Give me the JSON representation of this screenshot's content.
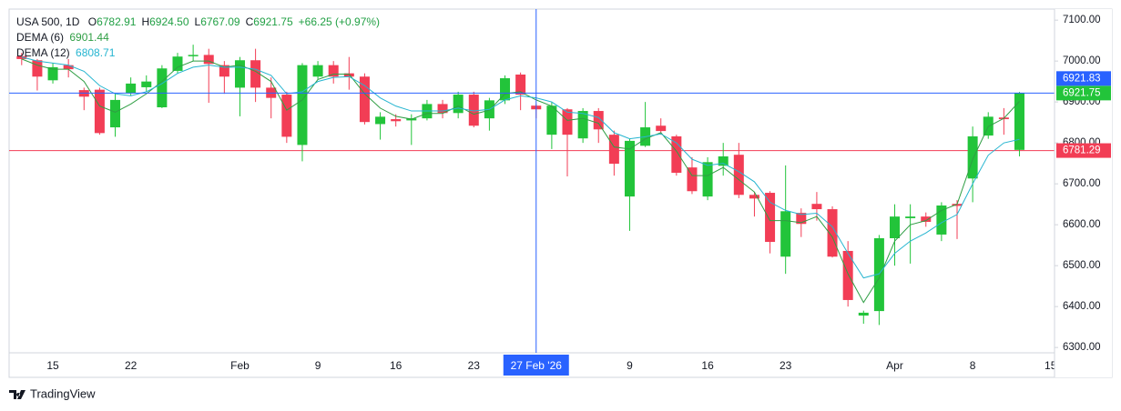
{
  "chart_data": {
    "type": "candlestick",
    "header": {
      "symbol": "USA 500, 1D",
      "ohlc": [
        {
          "key": "O",
          "value": "6782.91"
        },
        {
          "key": "H",
          "value": "6924.50"
        },
        {
          "key": "L",
          "value": "6767.09"
        },
        {
          "key": "C",
          "value": "6921.75"
        }
      ],
      "change": "+66.25 (+0.97%)"
    },
    "categories": [
      null,
      null,
      "15",
      null,
      null,
      null,
      null,
      "22",
      null,
      null,
      null,
      null,
      null,
      null,
      "Feb",
      null,
      null,
      null,
      null,
      "9",
      null,
      null,
      null,
      null,
      "16",
      null,
      null,
      null,
      null,
      "23",
      null,
      null,
      null,
      null,
      null,
      null,
      null,
      null,
      null,
      "9",
      null,
      null,
      null,
      null,
      "16",
      null,
      null,
      null,
      null,
      "23",
      null,
      null,
      null,
      null,
      null,
      null,
      "Apr",
      null,
      null,
      null,
      null,
      "8",
      null,
      null,
      null
    ],
    "extra_x_labels": [
      "15"
    ],
    "open": [
      7012,
      7002,
      6953,
      6990,
      6929,
      6930,
      6838,
      6922,
      6936,
      6887,
      6976,
      7012,
      7015,
      6990,
      6935,
      7002,
      6935,
      6918,
      6795,
      6962,
      6990,
      6970,
      6962,
      6846,
      6858,
      6855,
      6860,
      6895,
      6873,
      6918,
      6860,
      6904,
      6967,
      6891,
      6820,
      6882,
      6811,
      6878,
      6820,
      6669,
      6793,
      6842,
      6816,
      6740,
      6669,
      6744,
      6771,
      6673,
      6678,
      6522,
      6629,
      6651,
      6638,
      6536,
      6378,
      6389,
      6567,
      6616,
      6620,
      6576,
      6651,
      6713,
      6818,
      6862,
      6782.91
    ],
    "high": [
      7020,
      7005,
      6995,
      7005,
      6935,
      6935,
      6920,
      6960,
      6965,
      6990,
      7020,
      7040,
      7030,
      7000,
      7010,
      7030,
      6960,
      6925,
      6995,
      7000,
      7000,
      7010,
      6970,
      6875,
      6870,
      6870,
      6905,
      6905,
      6925,
      6925,
      6910,
      6965,
      6972,
      6895,
      6900,
      6885,
      6885,
      6885,
      6830,
      6810,
      6900,
      6860,
      6820,
      6765,
      6765,
      6800,
      6800,
      6680,
      6682,
      6745,
      6640,
      6680,
      6645,
      6560,
      6390,
      6575,
      6650,
      6650,
      6630,
      6655,
      6660,
      6840,
      6875,
      6885,
      6924.5
    ],
    "low": [
      6990,
      6928,
      6945,
      6960,
      6880,
      6820,
      6815,
      6915,
      6925,
      6885,
      6970,
      7000,
      6898,
      6920,
      6865,
      6900,
      6860,
      6800,
      6755,
      6955,
      6945,
      6930,
      6845,
      6808,
      6840,
      6795,
      6855,
      6860,
      6860,
      6838,
      6830,
      6895,
      6880,
      6860,
      6785,
      6718,
      6800,
      6800,
      6720,
      6585,
      6790,
      6820,
      6720,
      6675,
      6660,
      6720,
      6665,
      6620,
      6530,
      6480,
      6570,
      6610,
      6520,
      6400,
      6358,
      6355,
      6500,
      6505,
      6595,
      6560,
      6565,
      6655,
      6810,
      6820,
      6767.09
    ],
    "close": [
      7005,
      6962,
      6985,
      6980,
      6913,
      6824,
      6905,
      6945,
      6950,
      6982,
      7011,
      7015,
      6993,
      6962,
      7002,
      6935,
      6910,
      6815,
      6990,
      6990,
      6962,
      6962,
      6851,
      6864,
      6853,
      6860,
      6895,
      6873,
      6918,
      6842,
      6904,
      6958,
      6918,
      6882,
      6891,
      6820,
      6878,
      6833,
      6749,
      6805,
      6838,
      6829,
      6727,
      6682,
      6753,
      6767,
      6673,
      6664,
      6558,
      6633,
      6602,
      6638,
      6522,
      6416,
      6385,
      6567,
      6620,
      6620,
      6607,
      6647,
      6646,
      6816,
      6864,
      6858,
      6921.75
    ],
    "up_color": "#22c43a",
    "down_color": "#f23d55",
    "series": [
      {
        "name": "DEMA (6)",
        "color": "#2f9e44",
        "values": [
          7005,
          6990,
          6980,
          6980,
          6950,
          6890,
          6875,
          6895,
          6920,
          6950,
          6985,
          7000,
          7000,
          6985,
          6990,
          6975,
          6950,
          6880,
          6905,
          6955,
          6968,
          6968,
          6920,
          6885,
          6865,
          6858,
          6872,
          6872,
          6890,
          6870,
          6880,
          6920,
          6925,
          6905,
          6890,
          6855,
          6860,
          6848,
          6790,
          6785,
          6810,
          6825,
          6780,
          6720,
          6720,
          6740,
          6710,
          6680,
          6610,
          6610,
          6605,
          6620,
          6570,
          6480,
          6410,
          6470,
          6560,
          6600,
          6610,
          6635,
          6650,
          6760,
          6840,
          6860,
          6901.44
        ]
      },
      {
        "name": "DEMA (12)",
        "color": "#26b5d0",
        "values": [
          7010,
          7000,
          6995,
          6990,
          6975,
          6940,
          6920,
          6915,
          6925,
          6945,
          6970,
          6985,
          6990,
          6985,
          6985,
          6980,
          6965,
          6920,
          6925,
          6950,
          6960,
          6962,
          6940,
          6910,
          6890,
          6878,
          6878,
          6878,
          6885,
          6878,
          6882,
          6905,
          6915,
          6910,
          6900,
          6875,
          6872,
          6862,
          6825,
          6810,
          6815,
          6822,
          6800,
          6760,
          6745,
          6750,
          6730,
          6705,
          6655,
          6635,
          6625,
          6628,
          6595,
          6530,
          6470,
          6480,
          6530,
          6560,
          6580,
          6605,
          6625,
          6700,
          6770,
          6800,
          6808.71
        ]
      }
    ],
    "ylim": [
      6287,
      7127
    ],
    "yticks": [
      {
        "value": 6300,
        "label": "6300.00"
      },
      {
        "value": 6400,
        "label": "6400.00"
      },
      {
        "value": 6500,
        "label": "6500.00"
      },
      {
        "value": 6600,
        "label": "6600.00"
      },
      {
        "value": 6700,
        "label": "6700.00"
      },
      {
        "value": 6800,
        "label": "6800.00"
      },
      {
        "value": 6900,
        "label": "6900.00"
      },
      {
        "value": 7000,
        "label": "7000.00"
      },
      {
        "value": 7100,
        "label": "7100.00"
      }
    ],
    "grid": false,
    "last_price": {
      "value": 6921.75,
      "color": "#22c43a"
    },
    "prev_close": {
      "value": 6781.29,
      "color": "#f23d55"
    },
    "crosshair": {
      "label": "27 Feb '26",
      "price": 6921.83,
      "color": "#2962ff"
    }
  },
  "footer": {
    "brand": "TradingView"
  }
}
